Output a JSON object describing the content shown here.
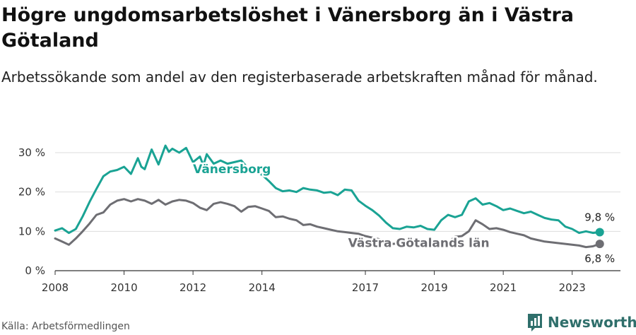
{
  "title": "Högre ungdomsarbetslöshet i Vänersborg än i Västra Götaland",
  "subtitle": "Arbetssökande som andel av den registerbaserade arbetskraften månad för månad.",
  "source": "Källa: Arbetsförmedlingen",
  "brand": "Newsworthy",
  "colors": {
    "vanersborg": "#1aa394",
    "vastra": "#6e6e73",
    "grid": "#dddddd",
    "brand": "#2f6f6b"
  },
  "chart_data": {
    "type": "line",
    "title": "Högre ungdomsarbetslöshet i Vänersborg än i Västra Götaland",
    "xlabel": "",
    "ylabel": "",
    "xlim": [
      2008,
      2024.4
    ],
    "ylim": [
      0,
      30
    ],
    "y_ticks": [
      0,
      10,
      20,
      30
    ],
    "y_tick_labels": [
      "0 %",
      "10 %",
      "20 %",
      "30 %"
    ],
    "x_ticks": [
      2008,
      2010,
      2012,
      2014,
      2017,
      2019,
      2021,
      2023
    ],
    "x_tick_labels": [
      "2008",
      "2010",
      "2012",
      "2014",
      "2017",
      "2019",
      "2021",
      "2023"
    ],
    "grid": true,
    "series": [
      {
        "name": "Vänersborg",
        "label": "Vänersborg",
        "end_label": "9,8 %",
        "x": [
          2008.0,
          2008.2,
          2008.4,
          2008.6,
          2008.8,
          2009.0,
          2009.2,
          2009.4,
          2009.6,
          2009.8,
          2010.0,
          2010.2,
          2010.4,
          2010.5,
          2010.6,
          2010.8,
          2011.0,
          2011.2,
          2011.3,
          2011.4,
          2011.6,
          2011.8,
          2012.0,
          2012.2,
          2012.3,
          2012.4,
          2012.6,
          2012.8,
          2013.0,
          2013.2,
          2013.4,
          2013.6,
          2013.8,
          2014.0,
          2014.2,
          2014.4,
          2014.6,
          2014.8,
          2015.0,
          2015.2,
          2015.4,
          2015.6,
          2015.8,
          2016.0,
          2016.2,
          2016.4,
          2016.6,
          2016.8,
          2017.0,
          2017.2,
          2017.4,
          2017.6,
          2017.8,
          2018.0,
          2018.2,
          2018.4,
          2018.6,
          2018.8,
          2019.0,
          2019.2,
          2019.4,
          2019.6,
          2019.8,
          2020.0,
          2020.2,
          2020.4,
          2020.6,
          2020.8,
          2021.0,
          2021.2,
          2021.4,
          2021.6,
          2021.8,
          2022.0,
          2022.2,
          2022.4,
          2022.6,
          2022.8,
          2023.0,
          2023.2,
          2023.4,
          2023.6,
          2023.8
        ],
        "values": [
          10.2,
          10.8,
          9.6,
          10.6,
          13.8,
          17.5,
          20.8,
          24.0,
          25.2,
          25.6,
          26.4,
          24.6,
          28.6,
          26.4,
          25.8,
          30.8,
          27.0,
          31.8,
          30.2,
          31.0,
          30.0,
          31.2,
          27.6,
          29.0,
          26.8,
          29.6,
          27.2,
          28.0,
          27.2,
          27.6,
          28.0,
          26.0,
          25.2,
          24.4,
          22.8,
          21.0,
          20.2,
          20.4,
          20.0,
          21.0,
          20.6,
          20.4,
          19.8,
          20.0,
          19.2,
          20.6,
          20.4,
          17.8,
          16.5,
          15.4,
          14.0,
          12.2,
          10.8,
          10.6,
          11.2,
          11.0,
          11.4,
          10.6,
          10.4,
          12.8,
          14.2,
          13.6,
          14.2,
          17.6,
          18.4,
          16.8,
          17.2,
          16.4,
          15.4,
          15.8,
          15.2,
          14.6,
          15.0,
          14.2,
          13.4,
          13.0,
          12.8,
          11.2,
          10.6,
          9.6,
          10.0,
          9.6,
          9.8
        ]
      },
      {
        "name": "Västra Götalands län",
        "label": "Västra Götalands län",
        "end_label": "6,8 %",
        "x": [
          2008.0,
          2008.2,
          2008.4,
          2008.6,
          2008.8,
          2009.0,
          2009.2,
          2009.4,
          2009.6,
          2009.8,
          2010.0,
          2010.2,
          2010.4,
          2010.6,
          2010.8,
          2011.0,
          2011.2,
          2011.4,
          2011.6,
          2011.8,
          2012.0,
          2012.2,
          2012.4,
          2012.6,
          2012.8,
          2013.0,
          2013.2,
          2013.4,
          2013.6,
          2013.8,
          2014.0,
          2014.2,
          2014.4,
          2014.6,
          2014.8,
          2015.0,
          2015.2,
          2015.4,
          2015.6,
          2015.8,
          2016.0,
          2016.2,
          2016.4,
          2016.6,
          2016.8,
          2017.0,
          2017.2,
          2017.4,
          2017.6,
          2017.8,
          2018.0,
          2018.2,
          2018.4,
          2018.6,
          2018.8,
          2019.0,
          2019.2,
          2019.4,
          2019.6,
          2019.8,
          2020.0,
          2020.2,
          2020.4,
          2020.6,
          2020.8,
          2021.0,
          2021.2,
          2021.4,
          2021.6,
          2021.8,
          2022.0,
          2022.2,
          2022.4,
          2022.6,
          2022.8,
          2023.0,
          2023.2,
          2023.4,
          2023.6,
          2023.8
        ],
        "values": [
          8.2,
          7.4,
          6.6,
          8.2,
          10.0,
          12.0,
          14.2,
          14.8,
          16.8,
          17.8,
          18.2,
          17.6,
          18.2,
          17.8,
          17.0,
          18.0,
          16.8,
          17.6,
          18.0,
          17.8,
          17.2,
          16.0,
          15.4,
          17.0,
          17.4,
          17.0,
          16.4,
          15.0,
          16.2,
          16.4,
          15.8,
          15.2,
          13.6,
          13.8,
          13.2,
          12.8,
          11.6,
          11.8,
          11.2,
          10.8,
          10.4,
          10.0,
          9.8,
          9.6,
          9.4,
          8.8,
          8.4,
          8.0,
          7.2,
          6.8,
          7.0,
          7.2,
          7.0,
          7.4,
          7.6,
          7.8,
          7.4,
          7.2,
          8.6,
          8.8,
          10.0,
          12.8,
          11.8,
          10.6,
          10.8,
          10.4,
          9.8,
          9.4,
          9.0,
          8.2,
          7.8,
          7.4,
          7.2,
          7.0,
          6.8,
          6.6,
          6.4,
          6.0,
          6.2,
          6.8
        ]
      }
    ]
  }
}
